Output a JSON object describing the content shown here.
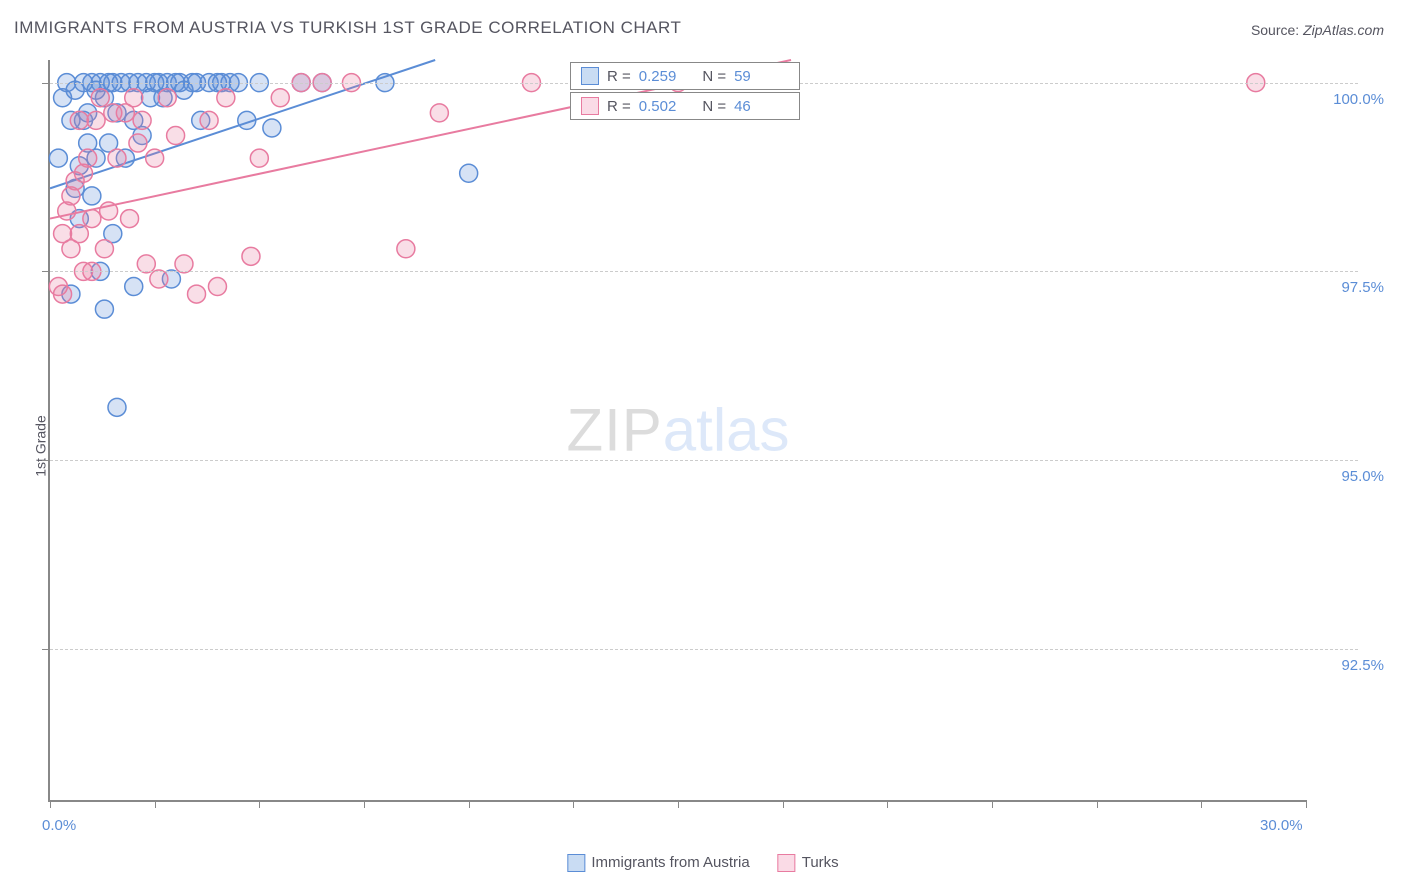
{
  "title": "IMMIGRANTS FROM AUSTRIA VS TURKISH 1ST GRADE CORRELATION CHART",
  "source": {
    "label": "Source:",
    "value": "ZipAtlas.com"
  },
  "ylabel": "1st Grade",
  "watermark": {
    "zip": "ZIP",
    "atlas": "atlas"
  },
  "chart": {
    "type": "scatter",
    "xlim": [
      0,
      30
    ],
    "ylim": [
      90.5,
      100.3
    ],
    "x_ticks": [
      0,
      2.5,
      5,
      7.5,
      10,
      12.5,
      15,
      17.5,
      20,
      22.5,
      25,
      27.5,
      30
    ],
    "x_tick_labels": {
      "0": "0.0%",
      "30": "30.0%"
    },
    "y_gridlines": [
      92.5,
      95.0,
      97.5,
      100.0
    ],
    "y_tick_labels": [
      "92.5%",
      "95.0%",
      "97.5%",
      "100.0%"
    ],
    "background_color": "#ffffff",
    "grid_color": "#cccccc",
    "axis_color": "#888888",
    "tick_label_color": "#5b8dd6",
    "marker_radius": 9,
    "marker_stroke_width": 1.5,
    "marker_fill_opacity": 0.25,
    "line_width": 2
  },
  "series": [
    {
      "name": "Immigrants from Austria",
      "color": "#5b8dd6",
      "fill": "#c9dcf3",
      "R": "0.259",
      "N": "59",
      "trend": {
        "x1": 0,
        "y1": 98.6,
        "x2": 9.2,
        "y2": 100.3
      },
      "points": [
        [
          0.2,
          99.0
        ],
        [
          0.3,
          99.8
        ],
        [
          0.4,
          100.0
        ],
        [
          0.5,
          97.2
        ],
        [
          0.5,
          99.5
        ],
        [
          0.6,
          98.6
        ],
        [
          0.6,
          99.9
        ],
        [
          0.7,
          98.2
        ],
        [
          0.7,
          98.9
        ],
        [
          0.8,
          100.0
        ],
        [
          0.8,
          99.5
        ],
        [
          0.9,
          99.2
        ],
        [
          0.9,
          99.6
        ],
        [
          1.0,
          100.0
        ],
        [
          1.0,
          98.5
        ],
        [
          1.1,
          99.0
        ],
        [
          1.1,
          99.9
        ],
        [
          1.2,
          100.0
        ],
        [
          1.2,
          97.5
        ],
        [
          1.3,
          99.8
        ],
        [
          1.3,
          97.0
        ],
        [
          1.4,
          100.0
        ],
        [
          1.4,
          99.2
        ],
        [
          1.5,
          100.0
        ],
        [
          1.5,
          98.0
        ],
        [
          1.6,
          99.6
        ],
        [
          1.6,
          95.7
        ],
        [
          1.7,
          100.0
        ],
        [
          1.8,
          99.0
        ],
        [
          1.9,
          100.0
        ],
        [
          2.0,
          99.5
        ],
        [
          2.0,
          97.3
        ],
        [
          2.1,
          100.0
        ],
        [
          2.2,
          99.3
        ],
        [
          2.3,
          100.0
        ],
        [
          2.4,
          99.8
        ],
        [
          2.5,
          100.0
        ],
        [
          2.6,
          100.0
        ],
        [
          2.7,
          99.8
        ],
        [
          2.8,
          100.0
        ],
        [
          2.9,
          97.4
        ],
        [
          3.0,
          100.0
        ],
        [
          3.1,
          100.0
        ],
        [
          3.2,
          99.9
        ],
        [
          3.4,
          100.0
        ],
        [
          3.5,
          100.0
        ],
        [
          3.6,
          99.5
        ],
        [
          3.8,
          100.0
        ],
        [
          4.0,
          100.0
        ],
        [
          4.1,
          100.0
        ],
        [
          4.3,
          100.0
        ],
        [
          4.5,
          100.0
        ],
        [
          4.7,
          99.5
        ],
        [
          5.0,
          100.0
        ],
        [
          5.3,
          99.4
        ],
        [
          6.0,
          100.0
        ],
        [
          6.5,
          100.0
        ],
        [
          8.0,
          100.0
        ],
        [
          10.0,
          98.8
        ]
      ]
    },
    {
      "name": "Turks",
      "color": "#e87ba0",
      "fill": "#fadbe6",
      "R": "0.502",
      "N": "46",
      "trend": {
        "x1": 0,
        "y1": 98.2,
        "x2": 17.7,
        "y2": 100.3
      },
      "points": [
        [
          0.2,
          97.3
        ],
        [
          0.3,
          98.0
        ],
        [
          0.3,
          97.2
        ],
        [
          0.4,
          98.3
        ],
        [
          0.5,
          98.5
        ],
        [
          0.5,
          97.8
        ],
        [
          0.6,
          98.7
        ],
        [
          0.7,
          99.5
        ],
        [
          0.7,
          98.0
        ],
        [
          0.8,
          97.5
        ],
        [
          0.8,
          98.8
        ],
        [
          0.9,
          99.0
        ],
        [
          1.0,
          98.2
        ],
        [
          1.0,
          97.5
        ],
        [
          1.1,
          99.5
        ],
        [
          1.2,
          99.8
        ],
        [
          1.3,
          97.8
        ],
        [
          1.4,
          98.3
        ],
        [
          1.5,
          99.6
        ],
        [
          1.6,
          99.0
        ],
        [
          1.8,
          99.6
        ],
        [
          1.9,
          98.2
        ],
        [
          2.0,
          99.8
        ],
        [
          2.1,
          99.2
        ],
        [
          2.2,
          99.5
        ],
        [
          2.3,
          97.6
        ],
        [
          2.5,
          99.0
        ],
        [
          2.6,
          97.4
        ],
        [
          2.8,
          99.8
        ],
        [
          3.0,
          99.3
        ],
        [
          3.2,
          97.6
        ],
        [
          3.5,
          97.2
        ],
        [
          3.8,
          99.5
        ],
        [
          4.0,
          97.3
        ],
        [
          4.2,
          99.8
        ],
        [
          4.8,
          97.7
        ],
        [
          5.0,
          99.0
        ],
        [
          5.5,
          99.8
        ],
        [
          6.0,
          100.0
        ],
        [
          6.5,
          100.0
        ],
        [
          7.2,
          100.0
        ],
        [
          8.5,
          97.8
        ],
        [
          9.3,
          99.6
        ],
        [
          11.5,
          100.0
        ],
        [
          15.0,
          100.0
        ],
        [
          28.8,
          100.0
        ]
      ]
    }
  ],
  "stat_boxes": {
    "r_prefix": "R =",
    "n_prefix": "N ="
  },
  "legend": {
    "items": [
      "Immigrants from Austria",
      "Turks"
    ]
  }
}
